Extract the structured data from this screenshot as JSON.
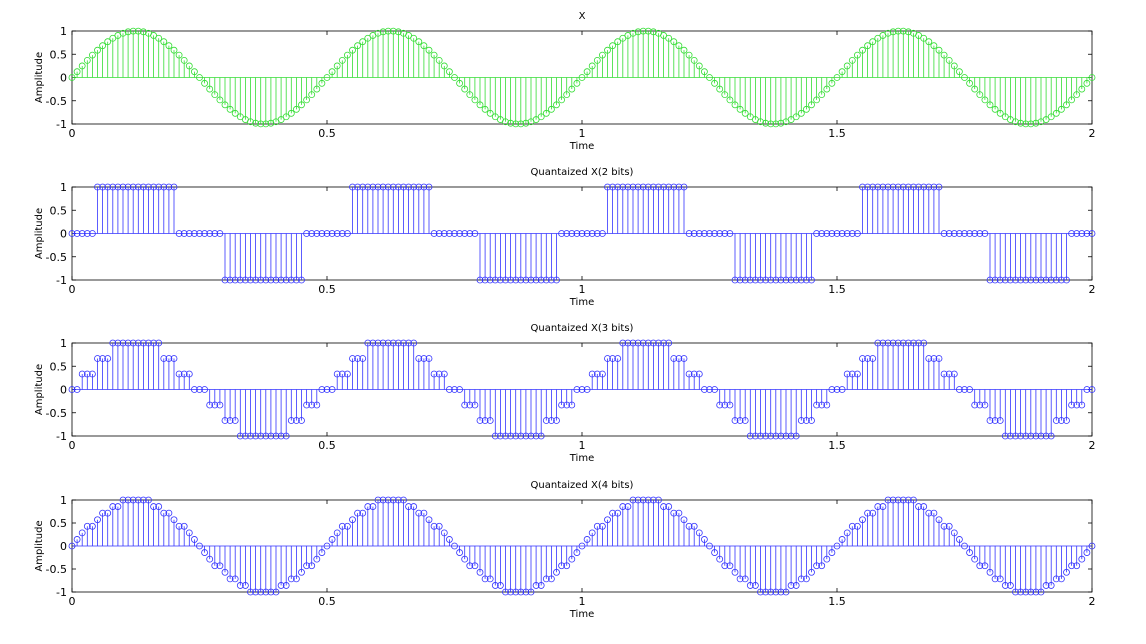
{
  "chart_data": [
    {
      "type": "stem",
      "title": "X",
      "xlabel": "Time",
      "ylabel": "Amplitude",
      "xlim": [
        0,
        2
      ],
      "ylim": [
        -1,
        1
      ],
      "xticks": [
        "0",
        "0.5",
        "1",
        "1.5",
        "2"
      ],
      "yticks": [
        "1",
        "0.5",
        "0",
        "-0.5",
        "-1"
      ],
      "color": "#33dd33",
      "marker": "circle",
      "series": [
        {
          "x_start": 0,
          "x_end": 2,
          "num_samples": 201,
          "y_formula": "sin(4*pi*t)",
          "levels": null
        }
      ]
    },
    {
      "type": "stem",
      "title": "Quantaized X(2 bits)",
      "xlabel": "Time",
      "ylabel": "Amplitude",
      "xlim": [
        0,
        2
      ],
      "ylim": [
        -1,
        1
      ],
      "xticks": [
        "0",
        "0.5",
        "1",
        "1.5",
        "2"
      ],
      "yticks": [
        "1",
        "0.5",
        "0",
        "-0.5",
        "-1"
      ],
      "color": "#3333ff",
      "marker": "circle",
      "series": [
        {
          "x_start": 0,
          "x_end": 2,
          "num_samples": 201,
          "y_formula": "round(sin(4*pi*t)*levels)/levels",
          "levels": 1
        }
      ]
    },
    {
      "type": "stem",
      "title": "Quantaized X(3 bits)",
      "xlabel": "Time",
      "ylabel": "Amplitude",
      "xlim": [
        0,
        2
      ],
      "ylim": [
        -1,
        1
      ],
      "xticks": [
        "0",
        "0.5",
        "1",
        "1.5",
        "2"
      ],
      "yticks": [
        "1",
        "0.5",
        "0",
        "-0.5",
        "-1"
      ],
      "color": "#3333ff",
      "marker": "circle",
      "series": [
        {
          "x_start": 0,
          "x_end": 2,
          "num_samples": 201,
          "y_formula": "round(sin(4*pi*t)*levels)/levels",
          "levels": 3
        }
      ]
    },
    {
      "type": "stem",
      "title": "Quantaized X(4 bits)",
      "xlabel": "Time",
      "ylabel": "Amplitude",
      "xlim": [
        0,
        2
      ],
      "ylim": [
        -1,
        1
      ],
      "xticks": [
        "0",
        "0.5",
        "1",
        "1.5",
        "2"
      ],
      "yticks": [
        "1",
        "0.5",
        "0",
        "-0.5",
        "-1"
      ],
      "color": "#3333ff",
      "marker": "circle",
      "series": [
        {
          "x_start": 0,
          "x_end": 2,
          "num_samples": 201,
          "y_formula": "round(sin(4*pi*t)*levels)/levels",
          "levels": 7
        }
      ]
    }
  ]
}
